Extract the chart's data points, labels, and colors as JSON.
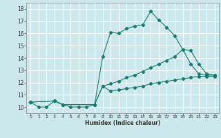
{
  "xlabel": "Humidex (Indice chaleur)",
  "bg_color": "#cce8ec",
  "grid_color": "#ffffff",
  "line_color": "#1a7a6e",
  "xlim": [
    -0.5,
    23.5
  ],
  "ylim": [
    9.5,
    18.5
  ],
  "xticks": [
    0,
    1,
    2,
    3,
    4,
    5,
    6,
    7,
    8,
    9,
    10,
    11,
    12,
    13,
    14,
    15,
    16,
    17,
    18,
    19,
    20,
    21,
    22,
    23
  ],
  "yticks": [
    10,
    11,
    12,
    13,
    14,
    15,
    16,
    17,
    18
  ],
  "series1_x": [
    0,
    1,
    2,
    3,
    4,
    5,
    6,
    7,
    8,
    9,
    10,
    11,
    12,
    13,
    14,
    15,
    16,
    17,
    18,
    19,
    20,
    21,
    22,
    23
  ],
  "series1_y": [
    10.4,
    10.0,
    10.0,
    10.5,
    10.2,
    10.0,
    10.0,
    10.0,
    10.2,
    14.1,
    16.1,
    16.0,
    16.4,
    16.6,
    16.7,
    17.8,
    17.1,
    16.5,
    15.8,
    14.7,
    13.5,
    12.7,
    12.6,
    12.6
  ],
  "series2_x": [
    0,
    3,
    4,
    8,
    9,
    10,
    11,
    12,
    13,
    14,
    15,
    16,
    17,
    18,
    19,
    20,
    21,
    22,
    23
  ],
  "series2_y": [
    10.4,
    10.5,
    10.2,
    10.2,
    11.7,
    11.9,
    12.1,
    12.4,
    12.6,
    12.9,
    13.2,
    13.5,
    13.8,
    14.1,
    14.7,
    14.6,
    13.5,
    12.7,
    12.6
  ],
  "series3_x": [
    0,
    3,
    4,
    8,
    9,
    10,
    11,
    12,
    13,
    14,
    15,
    16,
    17,
    18,
    19,
    20,
    21,
    22,
    23
  ],
  "series3_y": [
    10.4,
    10.5,
    10.2,
    10.2,
    11.7,
    11.3,
    11.4,
    11.5,
    11.6,
    11.7,
    11.9,
    12.0,
    12.1,
    12.2,
    12.3,
    12.4,
    12.5,
    12.5,
    12.5
  ]
}
